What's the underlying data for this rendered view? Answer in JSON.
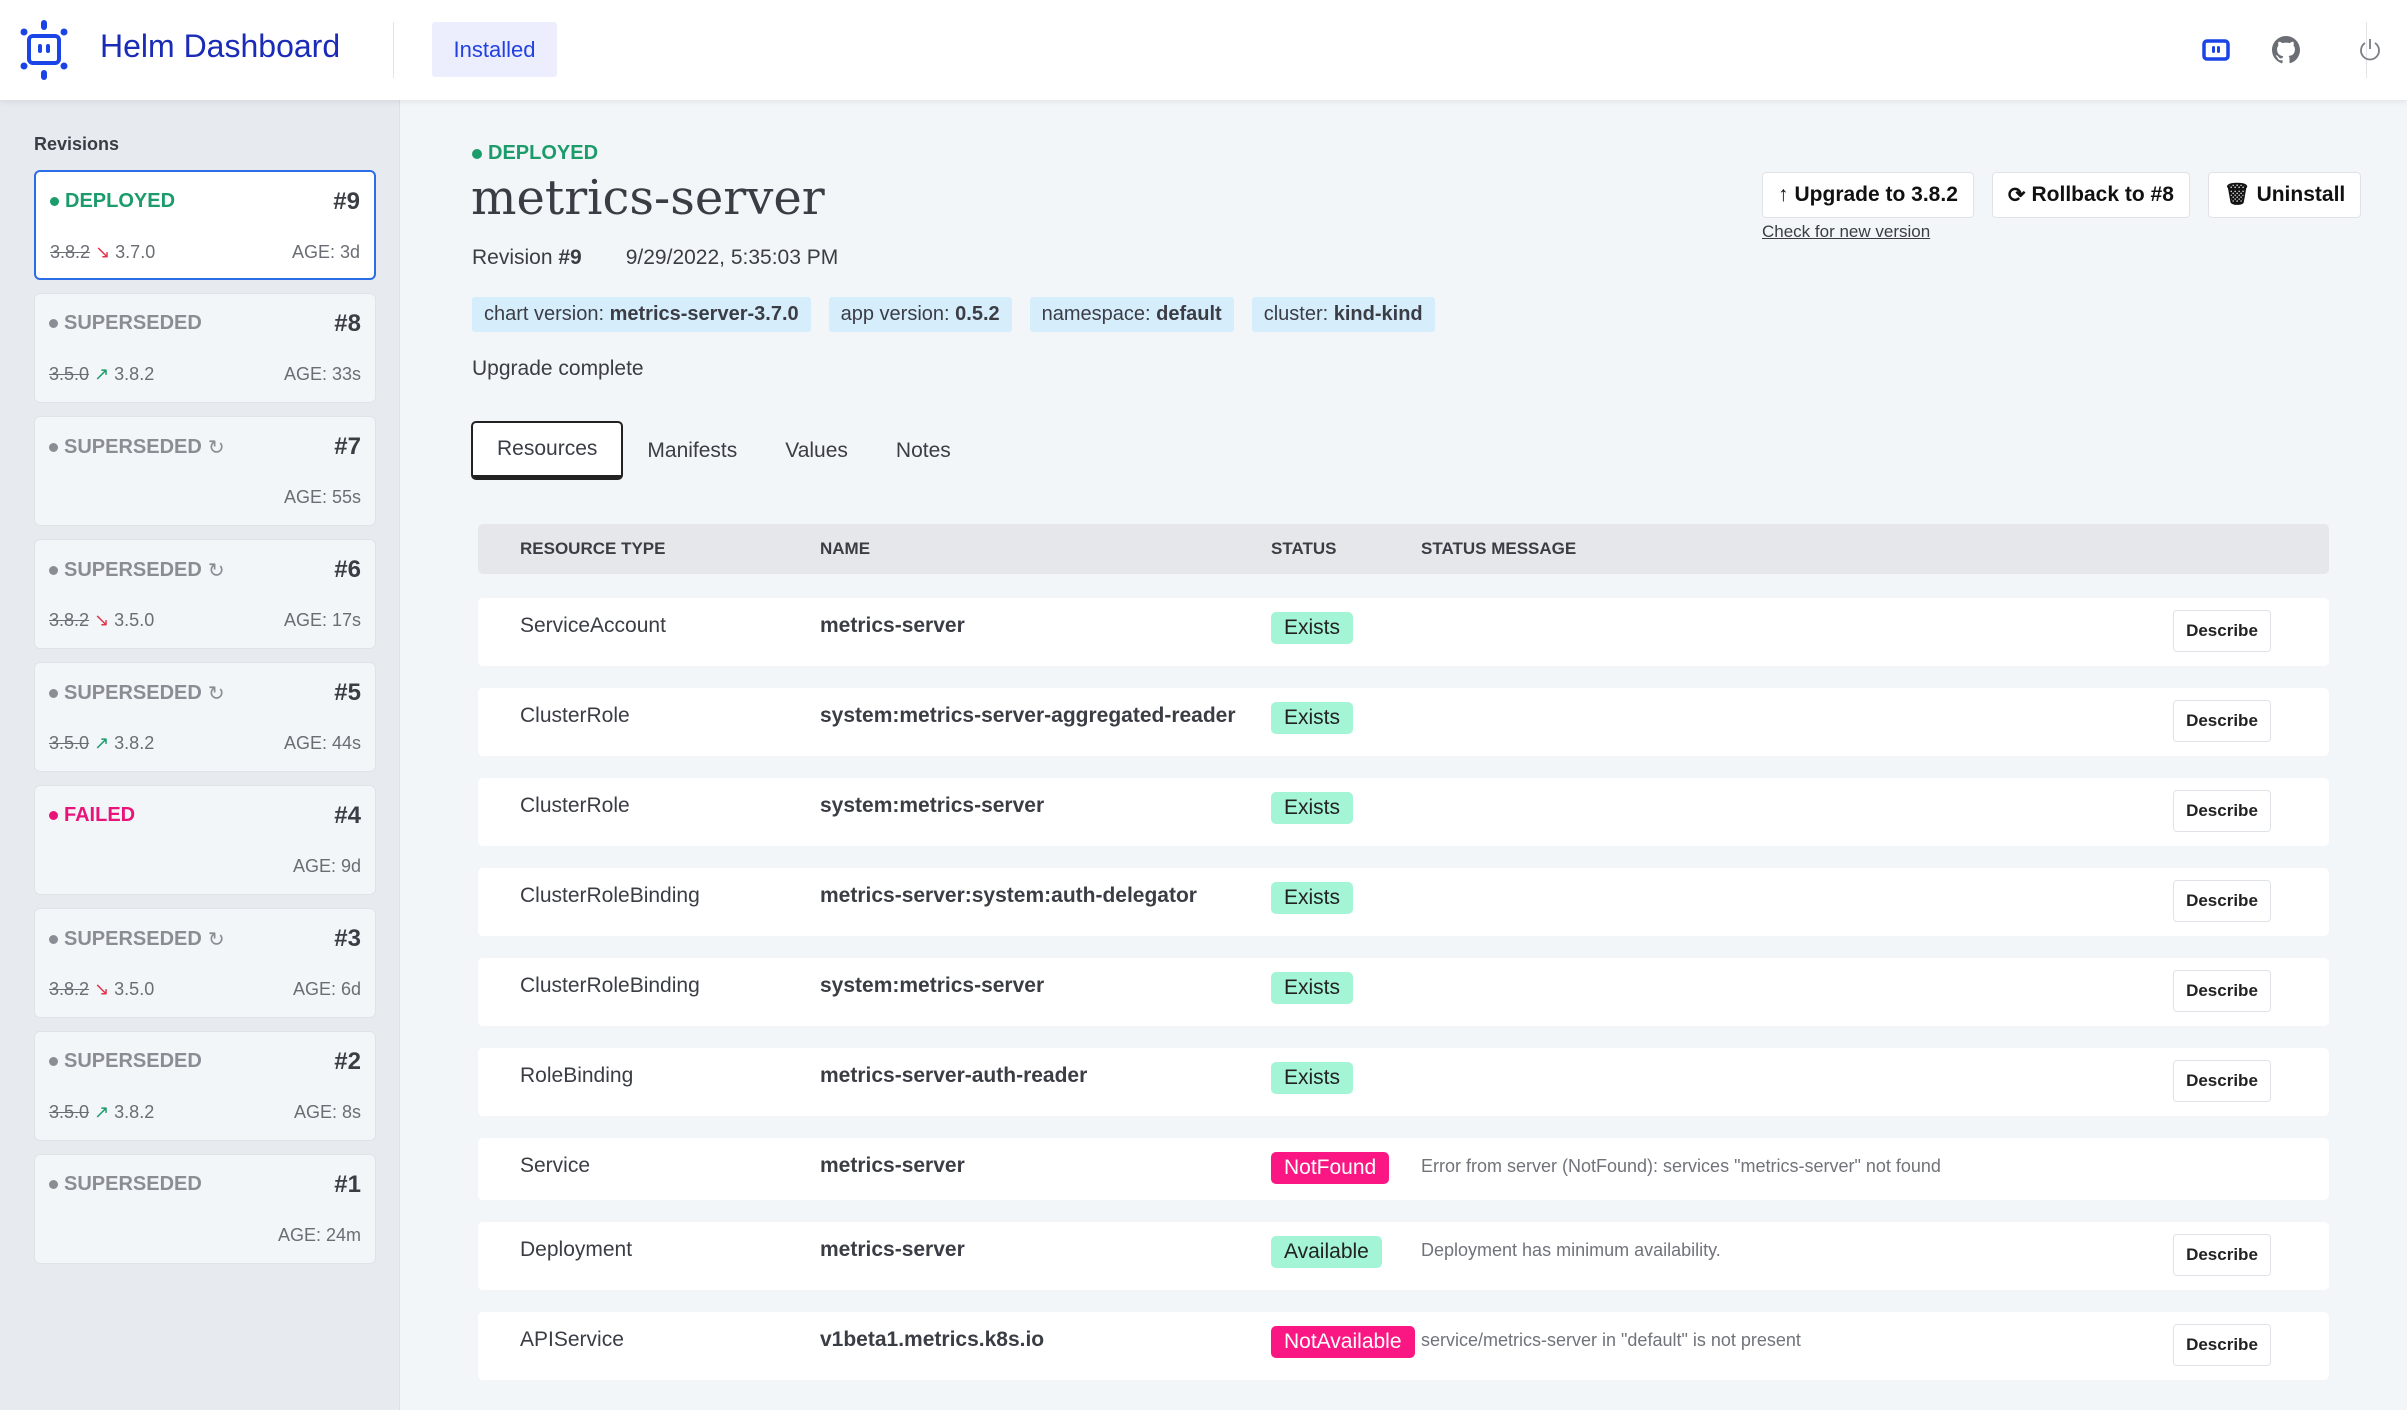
{
  "header": {
    "brand": "Helm Dashboard",
    "nav_installed": "Installed",
    "icons": [
      "helm-dashboard-icon",
      "github-icon",
      "power-icon"
    ],
    "accent": "#1a2bb8"
  },
  "sidebar": {
    "title": "Revisions",
    "revisions": [
      {
        "status": "DEPLOYED",
        "kind": "deployed",
        "number": "#9",
        "from": "3.8.2",
        "direction": "down",
        "to": "3.7.0",
        "age": "AGE: 3d",
        "refresh": false,
        "active": true
      },
      {
        "status": "SUPERSEDED",
        "kind": "superseded",
        "number": "#8",
        "from": "3.5.0",
        "direction": "up",
        "to": "3.8.2",
        "age": "AGE: 33s",
        "refresh": false
      },
      {
        "status": "SUPERSEDED",
        "kind": "superseded",
        "number": "#7",
        "from": "",
        "direction": "",
        "to": "",
        "age": "AGE: 55s",
        "refresh": true
      },
      {
        "status": "SUPERSEDED",
        "kind": "superseded",
        "number": "#6",
        "from": "3.8.2",
        "direction": "down",
        "to": "3.5.0",
        "age": "AGE: 17s",
        "refresh": true
      },
      {
        "status": "SUPERSEDED",
        "kind": "superseded",
        "number": "#5",
        "from": "3.5.0",
        "direction": "up",
        "to": "3.8.2",
        "age": "AGE: 44s",
        "refresh": true
      },
      {
        "status": "FAILED",
        "kind": "failed",
        "number": "#4",
        "from": "",
        "direction": "",
        "to": "",
        "age": "AGE: 9d",
        "refresh": false
      },
      {
        "status": "SUPERSEDED",
        "kind": "superseded",
        "number": "#3",
        "from": "3.8.2",
        "direction": "down",
        "to": "3.5.0",
        "age": "AGE: 6d",
        "refresh": true
      },
      {
        "status": "SUPERSEDED",
        "kind": "superseded",
        "number": "#2",
        "from": "3.5.0",
        "direction": "up",
        "to": "3.8.2",
        "age": "AGE: 8s",
        "refresh": false
      },
      {
        "status": "SUPERSEDED",
        "kind": "superseded",
        "number": "#1",
        "from": "",
        "direction": "",
        "to": "",
        "age": "AGE: 24m",
        "refresh": false
      }
    ]
  },
  "main": {
    "status": "DEPLOYED",
    "title": "metrics-server",
    "revision_label": "Revision ",
    "revision": "#9",
    "date": "9/29/2022, 5:35:03 PM",
    "badges": [
      {
        "label": "chart version: ",
        "value": "metrics-server-3.7.0"
      },
      {
        "label": "app version: ",
        "value": "0.5.2"
      },
      {
        "label": "namespace: ",
        "value": "default"
      },
      {
        "label": "cluster: ",
        "value": "kind-kind"
      }
    ],
    "message": "Upgrade complete",
    "actions": {
      "upgrade": "Upgrade to 3.8.2",
      "rollback": "Rollback to #8",
      "uninstall": "Uninstall",
      "check": "Check for new version"
    },
    "tabs": [
      "Resources",
      "Manifests",
      "Values",
      "Notes"
    ],
    "table": {
      "headers": [
        "RESOURCE TYPE",
        "NAME",
        "STATUS",
        "STATUS MESSAGE"
      ],
      "describe_label": "Describe",
      "rows": [
        {
          "type": "ServiceAccount",
          "name": "metrics-server",
          "status": "Exists",
          "ok": true,
          "message": "",
          "describe": true
        },
        {
          "type": "ClusterRole",
          "name": "system:metrics-server-aggregated-reader",
          "status": "Exists",
          "ok": true,
          "message": "",
          "describe": true
        },
        {
          "type": "ClusterRole",
          "name": "system:metrics-server",
          "status": "Exists",
          "ok": true,
          "message": "",
          "describe": true
        },
        {
          "type": "ClusterRoleBinding",
          "name": "metrics-server:system:auth-delegator",
          "status": "Exists",
          "ok": true,
          "message": "",
          "describe": true
        },
        {
          "type": "ClusterRoleBinding",
          "name": "system:metrics-server",
          "status": "Exists",
          "ok": true,
          "message": "",
          "describe": true
        },
        {
          "type": "RoleBinding",
          "name": "metrics-server-auth-reader",
          "status": "Exists",
          "ok": true,
          "message": "",
          "describe": true
        },
        {
          "type": "Service",
          "name": "metrics-server",
          "status": "NotFound",
          "ok": false,
          "message": "Error from server (NotFound): services \"metrics-server\" not found",
          "describe": false
        },
        {
          "type": "Deployment",
          "name": "metrics-server",
          "status": "Available",
          "ok": true,
          "message": "Deployment has minimum availability.",
          "describe": true
        },
        {
          "type": "APIService",
          "name": "v1beta1.metrics.k8s.io",
          "status": "NotAvailable",
          "ok": false,
          "message": "service/metrics-server in \"default\" is not present",
          "describe": true
        }
      ]
    }
  }
}
